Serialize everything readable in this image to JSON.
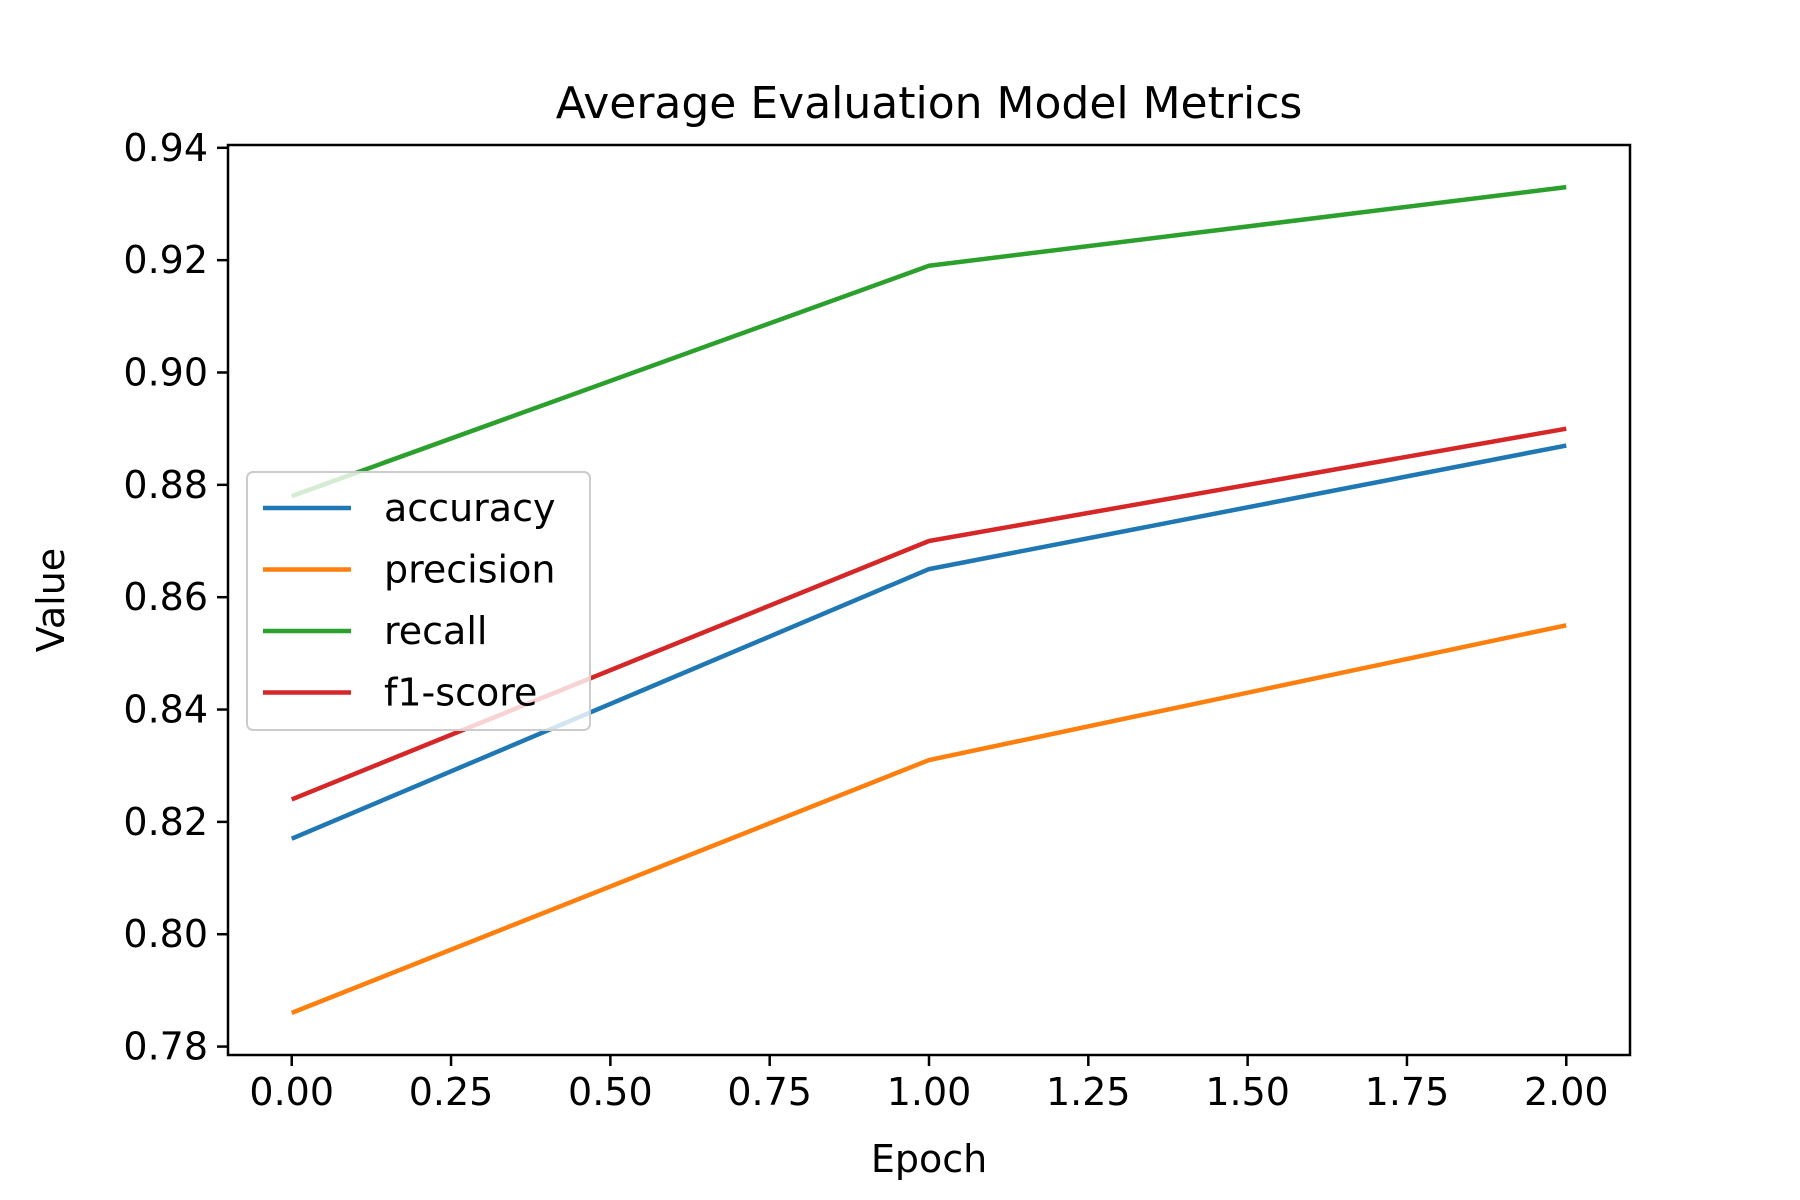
{
  "chart_data": {
    "type": "line",
    "title": "Average Evaluation Model Metrics",
    "xlabel": "Epoch",
    "ylabel": "Value",
    "xlim": [
      -0.1,
      2.1
    ],
    "ylim": [
      0.7785,
      0.9405
    ],
    "xticks": [
      0.0,
      0.25,
      0.5,
      0.75,
      1.0,
      1.25,
      1.5,
      1.75,
      2.0
    ],
    "xtick_labels": [
      "0.00",
      "0.25",
      "0.50",
      "0.75",
      "1.00",
      "1.25",
      "1.50",
      "1.75",
      "2.00"
    ],
    "yticks": [
      0.78,
      0.8,
      0.82,
      0.84,
      0.86,
      0.88,
      0.9,
      0.92,
      0.94
    ],
    "ytick_labels": [
      "0.78",
      "0.80",
      "0.82",
      "0.84",
      "0.86",
      "0.88",
      "0.90",
      "0.92",
      "0.94"
    ],
    "x": [
      0,
      1,
      2
    ],
    "grid": false,
    "legend_position": "center-left",
    "series": [
      {
        "name": "accuracy",
        "color": "#1f77b4",
        "values": [
          0.817,
          0.865,
          0.887
        ]
      },
      {
        "name": "precision",
        "color": "#ff7f0e",
        "values": [
          0.786,
          0.831,
          0.855
        ]
      },
      {
        "name": "recall",
        "color": "#2ca02c",
        "values": [
          0.878,
          0.919,
          0.933
        ]
      },
      {
        "name": "f1-score",
        "color": "#d62728",
        "values": [
          0.824,
          0.87,
          0.89
        ]
      }
    ]
  }
}
